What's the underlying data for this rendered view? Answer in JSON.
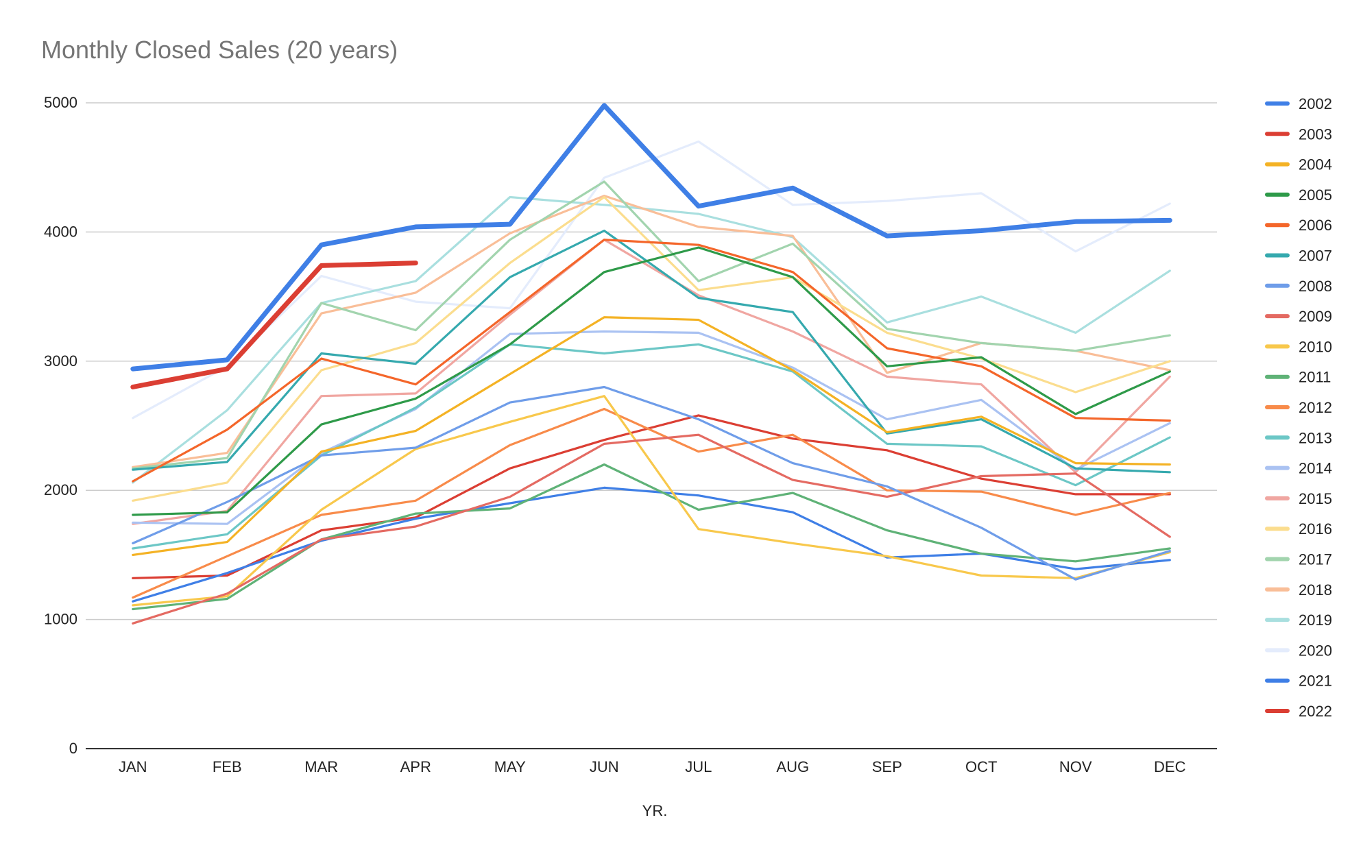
{
  "chart_data": {
    "type": "line",
    "title": "Monthly Closed Sales (20 years)",
    "xlabel": "YR.",
    "ylabel": "",
    "ylim": [
      0,
      5000
    ],
    "yticks": [
      0,
      1000,
      2000,
      3000,
      4000,
      5000
    ],
    "grid": true,
    "legend_position": "right",
    "categories": [
      "JAN",
      "FEB",
      "MAR",
      "APR",
      "MAY",
      "JUN",
      "JUL",
      "AUG",
      "SEP",
      "OCT",
      "NOV",
      "DEC"
    ],
    "series": [
      {
        "name": "2002",
        "color": "#3f7fe6",
        "values": [
          2940,
          3010,
          3900,
          4040,
          4060,
          4980,
          4200,
          4340,
          3970,
          4010,
          4080,
          4090
        ]
      },
      {
        "name": "2003",
        "color": "#db3e33",
        "values": [
          2800,
          2940,
          3740,
          3760,
          null,
          null,
          null,
          null,
          null,
          null,
          null,
          null
        ]
      },
      {
        "name": "2004",
        "color": "#f4b224",
        "values": [
          1500,
          1600,
          2300,
          2460,
          2900,
          3340,
          3320,
          2930,
          2450,
          2570,
          2210,
          2200
        ]
      },
      {
        "name": "2005",
        "color": "#2e9a49",
        "values": [
          1810,
          1830,
          2510,
          2710,
          3130,
          3690,
          3880,
          3650,
          2960,
          3030,
          2590,
          2920
        ]
      },
      {
        "name": "2006",
        "color": "#f4662a",
        "values": [
          2070,
          2470,
          3020,
          2820,
          3380,
          3940,
          3900,
          3690,
          3100,
          2960,
          2560,
          2540
        ]
      },
      {
        "name": "2007",
        "color": "#35a9ae",
        "values": [
          2160,
          2220,
          3060,
          2980,
          3650,
          4010,
          3490,
          3380,
          2440,
          2550,
          2170,
          2140
        ]
      },
      {
        "name": "2008",
        "color": "#6f9de9",
        "values": [
          1590,
          1910,
          2270,
          2330,
          2680,
          2800,
          2550,
          2210,
          2030,
          1710,
          1310,
          1530
        ]
      },
      {
        "name": "2009",
        "color": "#e46a62",
        "values": [
          970,
          1200,
          1620,
          1720,
          1950,
          2360,
          2430,
          2080,
          1950,
          2110,
          2130,
          1640
        ]
      },
      {
        "name": "2010",
        "color": "#f8c84c",
        "values": [
          1110,
          1180,
          1850,
          2320,
          2530,
          2730,
          1700,
          1590,
          1490,
          1340,
          1320,
          1520
        ]
      },
      {
        "name": "2011",
        "color": "#5fb277",
        "values": [
          1080,
          1160,
          1620,
          1820,
          1860,
          2200,
          1850,
          1980,
          1690,
          1510,
          1450,
          1550
        ]
      },
      {
        "name": "2012",
        "color": "#f88b4a",
        "values": [
          1170,
          1490,
          1810,
          1920,
          2350,
          2630,
          2300,
          2430,
          2000,
          1990,
          1810,
          1980
        ]
      },
      {
        "name": "2013",
        "color": "#6cc7c6",
        "values": [
          1550,
          1660,
          2270,
          2640,
          3130,
          3060,
          3130,
          2920,
          2360,
          2340,
          2040,
          2410
        ]
      },
      {
        "name": "2014",
        "color": "#aac2f2",
        "values": [
          1750,
          1740,
          2290,
          2630,
          3210,
          3230,
          3220,
          2950,
          2550,
          2700,
          2160,
          2520
        ]
      },
      {
        "name": "2015",
        "color": "#f0a6a1",
        "values": [
          1740,
          1840,
          2730,
          2750,
          3360,
          3940,
          3510,
          3230,
          2880,
          2820,
          2140,
          2880
        ]
      },
      {
        "name": "2016",
        "color": "#fbdd8e",
        "values": [
          1920,
          2060,
          2930,
          3140,
          3760,
          4270,
          3550,
          3650,
          3220,
          3020,
          2760,
          3000
        ]
      },
      {
        "name": "2017",
        "color": "#a2d4ae",
        "values": [
          2170,
          2250,
          3450,
          3240,
          3940,
          4390,
          3620,
          3910,
          3250,
          3140,
          3080,
          3200
        ]
      },
      {
        "name": "2018",
        "color": "#f9be98",
        "values": [
          2180,
          2290,
          3370,
          3530,
          3990,
          4280,
          4040,
          3970,
          2910,
          3140,
          3080,
          2930
        ]
      },
      {
        "name": "2019",
        "color": "#a9dfdf",
        "values": [
          2060,
          2620,
          3450,
          3620,
          4270,
          4210,
          4140,
          3960,
          3300,
          3500,
          3220,
          3700
        ]
      },
      {
        "name": "2020",
        "color": "#e4ecfc",
        "values": [
          2560,
          2960,
          3660,
          3460,
          3410,
          4420,
          4700,
          4210,
          4240,
          4300,
          3850,
          4220
        ]
      },
      {
        "name": "2021",
        "color": "#3f7fe6",
        "values": [
          1140,
          1360,
          1610,
          1780,
          1900,
          2020,
          1960,
          1830,
          1480,
          1510,
          1390,
          1460
        ]
      },
      {
        "name": "2022",
        "color": "#db3e33",
        "values": [
          1320,
          1340,
          1690,
          1790,
          2170,
          2390,
          2580,
          2400,
          2310,
          2090,
          1970,
          1970
        ]
      }
    ]
  }
}
